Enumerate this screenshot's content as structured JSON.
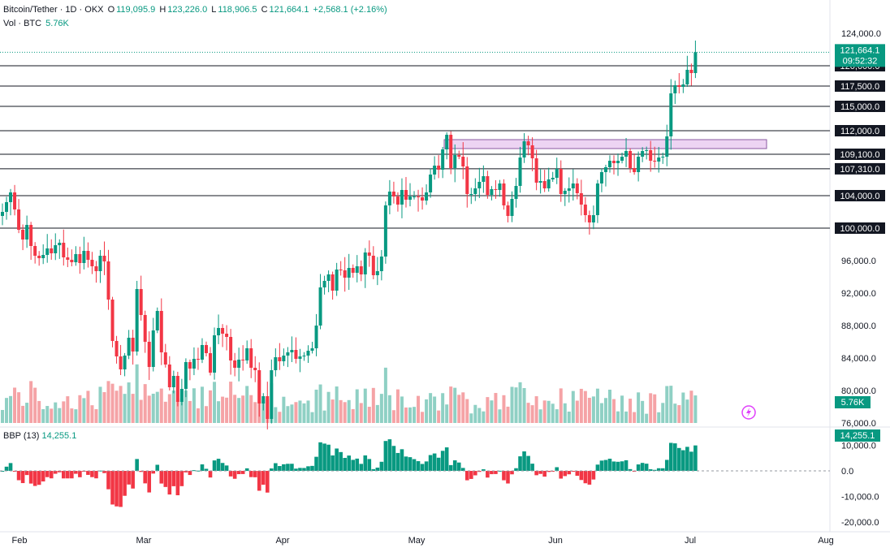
{
  "header": {
    "symbol": "Bitcoin/Tether · 1D · OKX",
    "open_label": "O",
    "open": "119,095.9",
    "high_label": "H",
    "high": "123,226.0",
    "low_label": "L",
    "low": "118,906.5",
    "close_label": "C",
    "close": "121,664.1",
    "change": "+2,568.1 (+2.16%)",
    "vol_label": "Vol · BTC",
    "vol_value": "5.76K"
  },
  "indicator": {
    "name": "BBP (13)",
    "value": "14,255.1"
  },
  "colors": {
    "up": "#089981",
    "down": "#f23645",
    "vol_up": "#8fd0c4",
    "vol_down": "#f5a3a6",
    "zone": "#e7c6ef"
  },
  "chart_data": {
    "type": "candlestick",
    "price_axis": {
      "ylim": [
        76000,
        126000
      ],
      "ticks": [
        "124,000.0",
        "96,000.0",
        "92,000.0",
        "88,000.0",
        "84,000.0",
        "80,000.0",
        "76,000.0"
      ]
    },
    "x_axis": {
      "ticks": [
        "Feb",
        "Mar",
        "Apr",
        "May",
        "Jun",
        "Jul",
        "Aug"
      ]
    },
    "horizontal_levels": [
      {
        "price": 120000,
        "label": "120,000.0"
      },
      {
        "price": 117500,
        "label": "117,500.0"
      },
      {
        "price": 115000,
        "label": "115,000.0"
      },
      {
        "price": 112000,
        "label": "112,000.0"
      },
      {
        "price": 109100,
        "label": "109,100.0"
      },
      {
        "price": 107310,
        "label": "107,310.0"
      },
      {
        "price": 104000,
        "label": "104,000.0"
      },
      {
        "price": 100000,
        "label": "100,000.0"
      }
    ],
    "zone": {
      "price_low": 109800,
      "price_high": 110900
    },
    "last_price": {
      "label": "121,664.1",
      "countdown": "09:52:32"
    },
    "volume_badge": "5.76K",
    "bbp_axis": {
      "ylim": [
        -20000,
        15000
      ],
      "ticks": [
        "10,000.0",
        "0.0",
        "-10,000.0",
        "-20,000.0"
      ],
      "badge": "14,255.1"
    },
    "closes": [
      102000,
      103200,
      104400,
      102300,
      99800,
      98600,
      100400,
      97800,
      96600,
      96300,
      96700,
      97500,
      96900,
      97900,
      98200,
      96400,
      96100,
      95800,
      96800,
      95700,
      97200,
      96100,
      95300,
      94700,
      96600,
      95900,
      91200,
      86100,
      84200,
      82600,
      84300,
      86500,
      84800,
      92500,
      89300,
      86000,
      82900,
      87400,
      89800,
      84700,
      83200,
      80400,
      81800,
      78600,
      80200,
      83500,
      82700,
      83900,
      83800,
      85600,
      84600,
      82200,
      86800,
      87700,
      87000,
      86600,
      83700,
      82800,
      83800,
      83700,
      85200,
      82800,
      82500,
      78400,
      79300,
      76500,
      82500,
      84100,
      83600,
      84300,
      84700,
      85000,
      83900,
      84200,
      84300,
      84900,
      85200,
      88000,
      92700,
      93500,
      94300,
      92300,
      94900,
      94800,
      93900,
      95100,
      94500,
      95300,
      94300,
      97000,
      96600,
      94200,
      94700,
      96500,
      102800,
      104500,
      103900,
      102900,
      104700,
      103500,
      103900,
      103900,
      103800,
      103400,
      104400,
      106600,
      107700,
      107200,
      109700,
      111500,
      107400,
      109000,
      108800,
      107600,
      104200,
      104200,
      104900,
      105700,
      106400,
      104100,
      104800,
      104700,
      105500,
      102800,
      101500,
      103600,
      105200,
      108700,
      110700,
      110200,
      108600,
      105600,
      105800,
      104900,
      106000,
      106200,
      107300,
      104200,
      104600,
      104900,
      105500,
      104300,
      102900,
      101600,
      100700,
      101600,
      105500,
      106900,
      107500,
      108300,
      108000,
      108300,
      108800,
      109500,
      107400,
      106900,
      108800,
      109500,
      109600,
      108300,
      108200,
      108700,
      108800,
      111300,
      116600,
      117600,
      117400,
      117700,
      119500,
      119100,
      121664
    ]
  }
}
